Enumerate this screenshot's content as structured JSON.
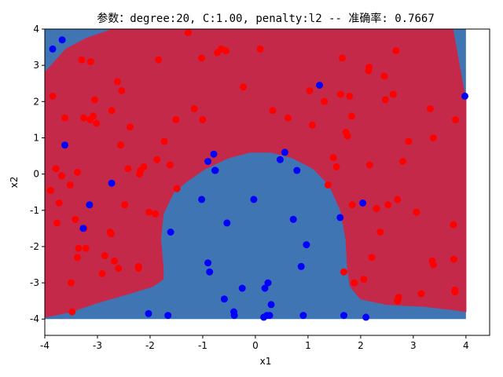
{
  "chart_data": {
    "type": "scatter",
    "title": "参数：degree:20, C:1.00, penalty:l2 -- 准确率: 0.7667",
    "xlabel": "x1",
    "ylabel": "x2",
    "xlim": [
      -4,
      4.45
    ],
    "ylim": [
      -4.45,
      4
    ],
    "xticks": [
      "-4",
      "-3",
      "-2",
      "-1",
      "0",
      "1",
      "2",
      "3",
      "4"
    ],
    "yticks": [
      "-4",
      "-3",
      "-2",
      "-1",
      "0",
      "1",
      "2",
      "3",
      "4"
    ],
    "grid": false,
    "legend": "none",
    "colors": {
      "background_region": "#4075b4",
      "decision_region": "#c5294a",
      "class_red": "#ff0000",
      "class_blue": "#0000ff"
    },
    "decision_region_outline": [
      [
        -4,
        2.8
      ],
      [
        -3.6,
        3.45
      ],
      [
        -3.2,
        3.75
      ],
      [
        -2.7,
        4.0
      ],
      [
        3.75,
        4.0
      ],
      [
        3.85,
        3.2
      ],
      [
        3.95,
        2.4
      ],
      [
        4.0,
        2.1
      ],
      [
        4.0,
        -3.8
      ],
      [
        3.8,
        -3.75
      ],
      [
        3.2,
        -3.65
      ],
      [
        2.5,
        -3.6
      ],
      [
        2.0,
        -3.45
      ],
      [
        1.8,
        -3.1
      ],
      [
        1.75,
        -2.6
      ],
      [
        1.72,
        -1.8
      ],
      [
        1.62,
        -1.0
      ],
      [
        1.4,
        -0.3
      ],
      [
        1.1,
        0.15
      ],
      [
        0.7,
        0.45
      ],
      [
        0.3,
        0.6
      ],
      [
        -0.1,
        0.6
      ],
      [
        -0.5,
        0.45
      ],
      [
        -0.95,
        0.15
      ],
      [
        -1.3,
        -0.2
      ],
      [
        -1.55,
        -0.5
      ],
      [
        -1.75,
        -1.1
      ],
      [
        -1.8,
        -1.8
      ],
      [
        -1.75,
        -2.6
      ],
      [
        -1.75,
        -2.9
      ],
      [
        -1.95,
        -3.1
      ],
      [
        -2.4,
        -3.3
      ],
      [
        -3.0,
        -3.55
      ],
      [
        -3.5,
        -3.8
      ],
      [
        -4,
        -3.95
      ]
    ],
    "series": [
      {
        "color": "#ff0000",
        "x": [
          -3.89,
          -3.85,
          -3.79,
          -3.77,
          -3.73,
          -3.68,
          -3.62,
          -3.52,
          -3.5,
          -3.48,
          -3.42,
          -3.38,
          -3.38,
          -3.36,
          -3.3,
          -3.26,
          -3.25,
          -3.22,
          -3.14,
          -3.13,
          -3.08,
          -3.05,
          -3.02,
          -2.91,
          -2.86,
          -2.76,
          -2.74,
          -2.73,
          -2.68,
          -2.62,
          -2.6,
          -2.56,
          -2.54,
          -2.48,
          -2.42,
          -2.38,
          -2.22,
          -2.22,
          -2.2,
          -2.18,
          -2.12,
          -2.02,
          -1.9,
          -1.87,
          -1.84,
          -1.73,
          -1.62,
          -1.51,
          -1.49,
          -1.28,
          -1.16,
          -1.02,
          -1.0,
          -0.72,
          -0.65,
          -0.56,
          -0.23,
          0.09,
          0.33,
          0.62,
          1.03,
          1.08,
          1.31,
          1.38,
          1.48,
          1.54,
          1.62,
          1.65,
          1.68,
          1.72,
          1.75,
          1.79,
          1.83,
          1.84,
          1.88,
          2.06,
          2.15,
          2.16,
          2.17,
          2.21,
          2.3,
          2.37,
          2.45,
          2.47,
          2.52,
          2.62,
          2.67,
          2.7,
          2.7,
          2.72,
          2.8,
          2.91,
          3.06,
          3.15,
          3.32,
          3.36,
          3.38,
          3.38,
          3.76,
          3.77,
          3.79,
          3.79,
          3.8
        ],
        "y": [
          -0.45,
          2.15,
          0.15,
          -1.35,
          -0.8,
          -0.05,
          1.55,
          -0.3,
          -3.0,
          -3.8,
          -1.25,
          -2.3,
          0.05,
          -2.05,
          3.15,
          1.55,
          -1.5,
          -2.05,
          1.5,
          3.1,
          1.6,
          2.05,
          1.4,
          -2.75,
          -2.25,
          -1.6,
          -1.65,
          1.75,
          -2.4,
          2.55,
          -2.6,
          0.8,
          2.3,
          -0.85,
          0.15,
          1.3,
          -2.55,
          -2.6,
          0.0,
          0.1,
          0.2,
          -1.05,
          -1.1,
          0.4,
          3.15,
          0.9,
          0.25,
          1.5,
          -0.4,
          3.9,
          1.8,
          3.2,
          1.5,
          3.35,
          3.45,
          3.4,
          2.4,
          3.45,
          1.75,
          1.55,
          2.3,
          1.35,
          2.0,
          -0.3,
          0.45,
          0.2,
          2.2,
          3.2,
          -2.7,
          1.15,
          1.05,
          2.15,
          1.6,
          -0.85,
          -3.0,
          -2.9,
          2.85,
          2.95,
          0.25,
          -2.3,
          -0.95,
          -1.6,
          2.7,
          2.05,
          -0.85,
          2.2,
          3.4,
          -0.7,
          -3.5,
          -3.4,
          0.35,
          0.9,
          -1.05,
          -3.3,
          1.8,
          -2.4,
          -2.5,
          1.0,
          -1.4,
          -2.35,
          -3.25,
          -3.2,
          1.5
        ],
        "markers_hidden_behind_axes_note": ""
      },
      {
        "color": "#0000ff",
        "x": [
          -3.85,
          -3.67,
          -3.62,
          -3.27,
          -3.15,
          -2.73,
          -2.03,
          -1.66,
          -1.61,
          -1.02,
          -0.9,
          -0.9,
          -0.87,
          -0.79,
          -0.77,
          -0.76,
          -0.59,
          -0.54,
          -0.41,
          -0.4,
          -0.25,
          -0.03,
          0.16,
          0.18,
          0.22,
          0.24,
          0.27,
          0.3,
          0.47,
          0.56,
          0.72,
          0.79,
          0.87,
          0.91,
          0.97,
          1.22,
          1.61,
          1.68,
          2.04,
          2.1,
          3.98
        ],
        "y": [
          3.45,
          3.7,
          0.8,
          -1.5,
          -0.85,
          -0.25,
          -3.85,
          -3.9,
          -1.6,
          -0.7,
          -2.45,
          0.35,
          -2.7,
          0.55,
          0.1,
          0.1,
          -3.45,
          -1.35,
          -3.8,
          -3.9,
          -3.15,
          -0.7,
          -3.95,
          -3.15,
          -3.9,
          -3.0,
          -3.9,
          -3.6,
          0.4,
          0.6,
          -1.25,
          0.1,
          -2.55,
          -3.9,
          -1.95,
          2.45,
          -1.2,
          -3.9,
          -0.8,
          -3.95,
          2.15
        ]
      }
    ]
  }
}
